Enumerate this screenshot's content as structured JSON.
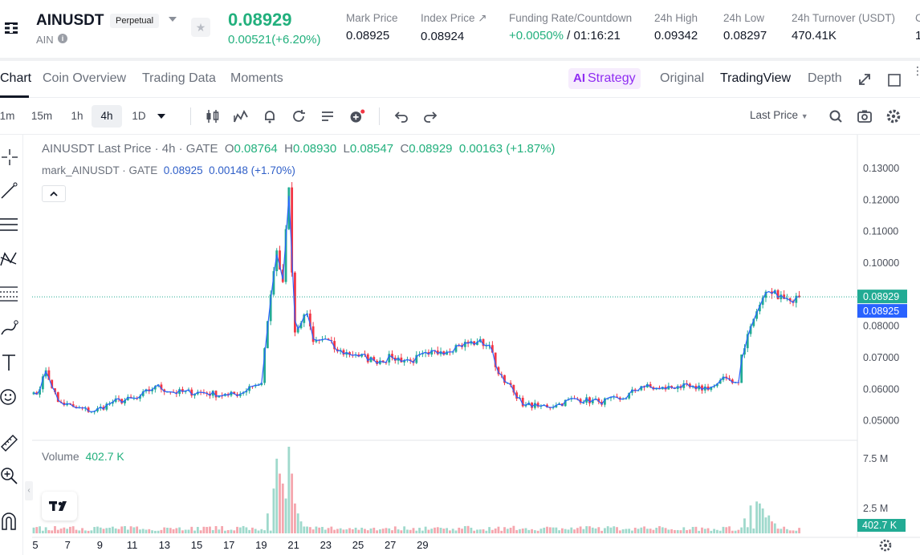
{
  "header": {
    "symbol": "AINUSDT",
    "contract_type": "Perpetual",
    "base": "AIN",
    "last_price": "0.08929",
    "change": "0.00521(+6.20%)",
    "stats": [
      {
        "label": "Mark Price",
        "value": "0.08925"
      },
      {
        "label": "Index Price ↗",
        "value": "0.08924"
      },
      {
        "label": "Funding Rate/Countdown",
        "value_green": "+0.0050%",
        "value": " / 01:16:21"
      },
      {
        "label": "24h High",
        "value": "0.09342"
      },
      {
        "label": "24h Low",
        "value": "0.08297"
      },
      {
        "label": "24h Turnover (USDT)",
        "value": "470.41K"
      },
      {
        "label": "C",
        "value": "1"
      }
    ]
  },
  "tabs": {
    "left": [
      "Chart",
      "Coin Overview",
      "Trading Data",
      "Moments"
    ],
    "strategy": "Strategy",
    "strategy_prefix": "AI",
    "right": [
      "Original",
      "TradingView",
      "Depth"
    ]
  },
  "toolbar": {
    "intervals": [
      "1m",
      "15m",
      "1h",
      "4h",
      "1D"
    ],
    "selected_interval": "4h",
    "price_source": "Last Price"
  },
  "legend": {
    "title": "AINUSDT Last Price · 4h · GATE",
    "o_label": "O",
    "o": "0.08764",
    "h_label": "H",
    "h": "0.08930",
    "l_label": "L",
    "l": "0.08547",
    "c_label": "C",
    "c": "0.08929",
    "change": "0.00163 (+1.87%)",
    "mark_title": "mark_AINUSDT · GATE",
    "mark_value": "0.08925",
    "mark_change": "0.00148 (+1.70%)",
    "volume_label": "Volume",
    "volume_value": "402.7 K"
  },
  "colors": {
    "up": "#22ab94",
    "down": "#f23645",
    "mark_line": "#2962ff",
    "accent_green": "#22b07d",
    "strategy_purple": "#8f2cf2"
  },
  "chart_data": {
    "type": "candlestick",
    "interval": "4h",
    "y_ticks": [
      "0.13000",
      "0.12000",
      "0.11000",
      "0.10000",
      "0.09000",
      "0.08000",
      "0.07000",
      "0.06000",
      "0.05000"
    ],
    "ylim": [
      0.0438,
      0.1407
    ],
    "volume_ticks": [
      "7.5 M",
      "2.5 M"
    ],
    "volume_max": 8.7,
    "x_ticks": [
      "5",
      "7",
      "9",
      "11",
      "13",
      "15",
      "17",
      "19",
      "21",
      "23",
      "25",
      "27",
      "29"
    ],
    "last_price_label": "0.08929",
    "mark_price_label": "0.08925",
    "volume_label_value": "402.7 K",
    "last_price": 0.08929,
    "anchors": [
      [
        0,
        0.059
      ],
      [
        2,
        0.06
      ],
      [
        4,
        0.066
      ],
      [
        8,
        0.056
      ],
      [
        14,
        0.054
      ],
      [
        20,
        0.053
      ],
      [
        26,
        0.056
      ],
      [
        34,
        0.057
      ],
      [
        40,
        0.061
      ],
      [
        46,
        0.059
      ],
      [
        55,
        0.059
      ],
      [
        64,
        0.058
      ],
      [
        69,
        0.059
      ],
      [
        71,
        0.061
      ],
      [
        75,
        0.062
      ],
      [
        76,
        0.073
      ],
      [
        78,
        0.09
      ],
      [
        80,
        0.104
      ],
      [
        82,
        0.094
      ],
      [
        84,
        0.124
      ],
      [
        85,
        0.097
      ],
      [
        86,
        0.078
      ],
      [
        88,
        0.081
      ],
      [
        90,
        0.084
      ],
      [
        92,
        0.075
      ],
      [
        96,
        0.076
      ],
      [
        100,
        0.072
      ],
      [
        106,
        0.071
      ],
      [
        112,
        0.069
      ],
      [
        118,
        0.07
      ],
      [
        124,
        0.069
      ],
      [
        130,
        0.071
      ],
      [
        134,
        0.072
      ],
      [
        140,
        0.074
      ],
      [
        146,
        0.075
      ],
      [
        150,
        0.074
      ],
      [
        152,
        0.067
      ],
      [
        156,
        0.062
      ],
      [
        159,
        0.057
      ],
      [
        162,
        0.055
      ],
      [
        166,
        0.0545
      ],
      [
        172,
        0.055
      ],
      [
        178,
        0.057
      ],
      [
        186,
        0.056
      ],
      [
        194,
        0.057
      ],
      [
        200,
        0.061
      ],
      [
        206,
        0.06
      ],
      [
        212,
        0.061
      ],
      [
        218,
        0.06
      ],
      [
        224,
        0.061
      ],
      [
        228,
        0.0635
      ],
      [
        232,
        0.062
      ],
      [
        233,
        0.071
      ],
      [
        236,
        0.08
      ],
      [
        240,
        0.089
      ],
      [
        242,
        0.091
      ],
      [
        246,
        0.09
      ],
      [
        249,
        0.088
      ],
      [
        252,
        0.0893
      ]
    ],
    "volume_spikes": [
      [
        77,
        2.0
      ],
      [
        79,
        4.5
      ],
      [
        80,
        7.5
      ],
      [
        81,
        6.0
      ],
      [
        82,
        5.0
      ],
      [
        83,
        3.5
      ],
      [
        84,
        8.7
      ],
      [
        85,
        6.0
      ],
      [
        86,
        3.0
      ],
      [
        87,
        2.0
      ],
      [
        88,
        1.2
      ],
      [
        234,
        1.5
      ],
      [
        236,
        2.8
      ],
      [
        238,
        3.2
      ],
      [
        239,
        3.0
      ],
      [
        240,
        2.5
      ],
      [
        241,
        1.6
      ],
      [
        242,
        1.8
      ],
      [
        243,
        1.2
      ],
      [
        244,
        1.0
      ]
    ],
    "volume_baseline": 0.5
  }
}
